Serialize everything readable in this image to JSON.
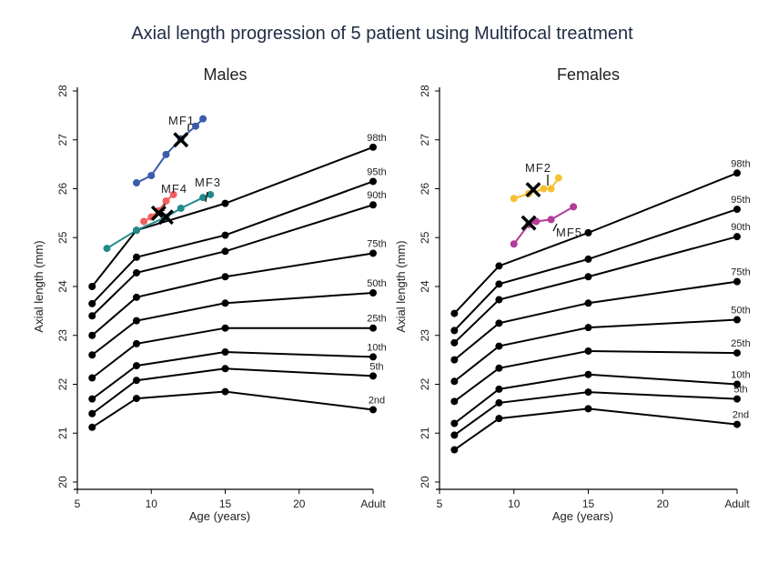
{
  "title": "Axial length progression of 5 patient using Multifocal treatment",
  "chart_data": [
    {
      "type": "line",
      "title": "Males",
      "xlabel": "Age (years)",
      "ylabel": "Axial length (mm)",
      "xticks": [
        {
          "value": 5,
          "label": "5"
        },
        {
          "value": 10,
          "label": "10"
        },
        {
          "value": 15,
          "label": "15"
        },
        {
          "value": 20,
          "label": "20"
        },
        {
          "value": 25,
          "label": "Adult"
        }
      ],
      "yticks": [
        "20",
        "21",
        "22",
        "23",
        "24",
        "25",
        "26",
        "27",
        "28"
      ],
      "xlim": [
        5,
        25
      ],
      "ylim": [
        20,
        28
      ],
      "ages": [
        6,
        9,
        15,
        25
      ],
      "percentiles": [
        {
          "name": "98th",
          "values": [
            24.0,
            25.15,
            25.7,
            26.85
          ]
        },
        {
          "name": "95th",
          "values": [
            23.65,
            24.6,
            25.05,
            26.15
          ]
        },
        {
          "name": "90th",
          "values": [
            23.4,
            24.28,
            24.72,
            25.67
          ]
        },
        {
          "name": "75th",
          "values": [
            23.0,
            23.78,
            24.2,
            24.68
          ]
        },
        {
          "name": "50th",
          "values": [
            22.6,
            23.3,
            23.66,
            23.87
          ]
        },
        {
          "name": "25th",
          "values": [
            22.13,
            22.83,
            23.15,
            23.15
          ]
        },
        {
          "name": "10th",
          "values": [
            21.7,
            22.38,
            22.66,
            22.56
          ]
        },
        {
          "name": "5th",
          "values": [
            21.4,
            22.08,
            22.32,
            22.17
          ]
        },
        {
          "name": "2nd",
          "values": [
            21.12,
            21.71,
            21.85,
            21.48
          ]
        }
      ],
      "patients": [
        {
          "name": "MF1",
          "color": "#3b5bab",
          "x": [
            9.0,
            10.0,
            11.0,
            12.0,
            13.0,
            13.5
          ],
          "y": [
            26.12,
            26.27,
            26.7,
            27.02,
            27.28,
            27.43
          ],
          "marker_x": 12.0,
          "marker_y": 27.0
        },
        {
          "name": "MF4",
          "color": "#f0605e",
          "x": [
            9.5,
            10.0,
            10.5,
            11.0,
            11.5
          ],
          "y": [
            25.33,
            25.42,
            25.55,
            25.75,
            25.88
          ],
          "marker_x": 10.5,
          "marker_y": 25.5
        },
        {
          "name": "MF3",
          "color": "#238a89",
          "x": [
            7.0,
            9.0,
            11.0,
            12.0,
            13.5,
            14.0
          ],
          "y": [
            24.78,
            25.15,
            25.42,
            25.6,
            25.82,
            25.88
          ],
          "marker_x": 11.0,
          "marker_y": 25.42
        }
      ]
    },
    {
      "type": "line",
      "title": "Females",
      "xlabel": "Age (years)",
      "ylabel": "Axial length (mm)",
      "xticks": [
        {
          "value": 5,
          "label": "5"
        },
        {
          "value": 10,
          "label": "10"
        },
        {
          "value": 15,
          "label": "15"
        },
        {
          "value": 20,
          "label": "20"
        },
        {
          "value": 25,
          "label": "Adult"
        }
      ],
      "yticks": [
        "20",
        "21",
        "22",
        "23",
        "24",
        "25",
        "26",
        "27",
        "28"
      ],
      "xlim": [
        5,
        25
      ],
      "ylim": [
        20,
        28
      ],
      "ages": [
        6,
        9,
        15,
        25
      ],
      "percentiles": [
        {
          "name": "98th",
          "values": [
            23.45,
            24.42,
            25.1,
            26.32
          ]
        },
        {
          "name": "95th",
          "values": [
            23.1,
            24.05,
            24.56,
            25.58
          ]
        },
        {
          "name": "90th",
          "values": [
            22.85,
            23.73,
            24.2,
            25.02
          ]
        },
        {
          "name": "75th",
          "values": [
            22.5,
            23.25,
            23.66,
            24.1
          ]
        },
        {
          "name": "50th",
          "values": [
            22.06,
            22.78,
            23.16,
            23.32
          ]
        },
        {
          "name": "25th",
          "values": [
            21.65,
            22.33,
            22.68,
            22.64
          ]
        },
        {
          "name": "10th",
          "values": [
            21.2,
            21.9,
            22.2,
            22.0
          ]
        },
        {
          "name": "5th",
          "values": [
            20.96,
            21.62,
            21.84,
            21.7
          ]
        },
        {
          "name": "2nd",
          "values": [
            20.66,
            21.3,
            21.5,
            21.18
          ]
        }
      ],
      "patients": [
        {
          "name": "MF2",
          "color": "#f7c034",
          "x": [
            10.0,
            11.0,
            12.0,
            12.5,
            13.0
          ],
          "y": [
            25.8,
            25.9,
            26.0,
            26.0,
            26.22
          ],
          "marker_x": 11.3,
          "marker_y": 25.98
        },
        {
          "name": "MF5",
          "color": "#b33c97",
          "x": [
            10.0,
            11.0,
            11.5,
            12.5,
            14.0
          ],
          "y": [
            24.87,
            25.27,
            25.33,
            25.37,
            25.63
          ],
          "marker_x": 11.0,
          "marker_y": 25.3
        }
      ]
    }
  ]
}
